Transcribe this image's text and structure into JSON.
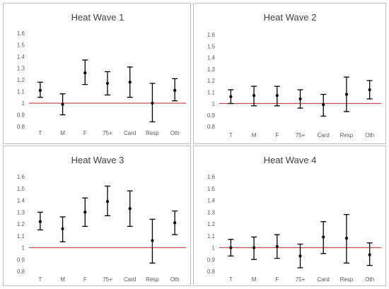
{
  "chart_data": [
    {
      "type": "errorbar",
      "title": "Heat Wave 1",
      "categories": [
        "T",
        "M",
        "F",
        "75+",
        "Card",
        "Resp",
        "Oth"
      ],
      "estimate": [
        1.11,
        0.99,
        1.26,
        1.17,
        1.18,
        1.0,
        1.11
      ],
      "lower": [
        1.05,
        0.9,
        1.16,
        1.07,
        1.05,
        0.84,
        1.02
      ],
      "upper": [
        1.18,
        1.08,
        1.37,
        1.27,
        1.31,
        1.17,
        1.21
      ],
      "reference_line": 1,
      "ylim": [
        0.8,
        1.6
      ],
      "yticks": [
        "0.8",
        "0.9",
        "1",
        "1.1",
        "1.2",
        "1.3",
        "1.4",
        "1.5",
        "1.6"
      ]
    },
    {
      "type": "errorbar",
      "title": "Heat Wave 2",
      "categories": [
        "T",
        "M",
        "F",
        "75+",
        "Card",
        "Resp",
        "Oth"
      ],
      "estimate": [
        1.06,
        1.07,
        1.07,
        1.04,
        0.99,
        1.08,
        1.12
      ],
      "lower": [
        1.0,
        0.98,
        0.98,
        0.96,
        0.89,
        0.93,
        1.04
      ],
      "upper": [
        1.12,
        1.15,
        1.15,
        1.12,
        1.08,
        1.23,
        1.2
      ],
      "reference_line": 1,
      "ylim": [
        0.8,
        1.6
      ],
      "yticks": [
        "0.8",
        "0.9",
        "1",
        "1.1",
        "1.2",
        "1.3",
        "1.4",
        "1.5",
        "1.6"
      ]
    },
    {
      "type": "errorbar",
      "title": "Heat Wave 3",
      "categories": [
        "T",
        "M",
        "F",
        "75+",
        "Card",
        "Resp",
        "Oth"
      ],
      "estimate": [
        1.22,
        1.16,
        1.3,
        1.39,
        1.33,
        1.06,
        1.21
      ],
      "lower": [
        1.15,
        1.05,
        1.18,
        1.27,
        1.18,
        0.87,
        1.11
      ],
      "upper": [
        1.3,
        1.26,
        1.42,
        1.52,
        1.48,
        1.24,
        1.31
      ],
      "reference_line": 1,
      "ylim": [
        0.8,
        1.6
      ],
      "yticks": [
        "0.8",
        "0.9",
        "1",
        "1.1",
        "1.2",
        "1.3",
        "1.4",
        "1.5",
        "1.6"
      ]
    },
    {
      "type": "errorbar",
      "title": "Heat Wave 4",
      "categories": [
        "T",
        "M",
        "F",
        "75+",
        "Card",
        "Resp",
        "Oth"
      ],
      "estimate": [
        1.0,
        1.0,
        1.01,
        0.93,
        1.09,
        1.08,
        0.94
      ],
      "lower": [
        0.93,
        0.9,
        0.91,
        0.83,
        0.95,
        0.87,
        0.85
      ],
      "upper": [
        1.07,
        1.09,
        1.11,
        1.03,
        1.22,
        1.28,
        1.04
      ],
      "reference_line": 1,
      "ylim": [
        0.8,
        1.6
      ],
      "yticks": [
        "0.8",
        "0.9",
        "1",
        "1.1",
        "1.2",
        "1.3",
        "1.4",
        "1.5",
        "1.6"
      ]
    }
  ],
  "style": {
    "reference_line_color": "#c0504d",
    "bar_color": "#000000",
    "border_color": "#bfbfbf"
  }
}
